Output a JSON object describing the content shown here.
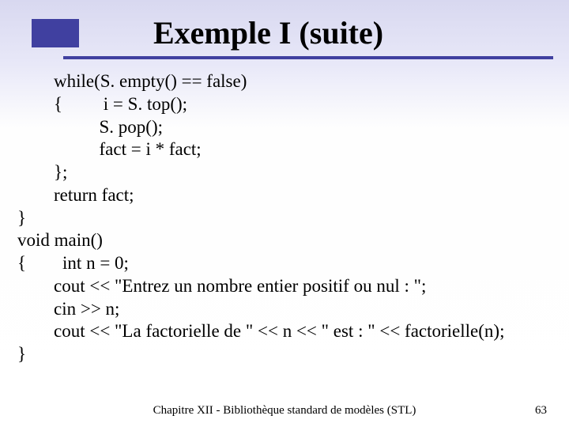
{
  "slide": {
    "title": "Exemple I (suite)",
    "accent_color": "#4040a0",
    "background_gradient_top": "#d8d8f0",
    "background_gradient_bottom": "#ffffff",
    "code_lines": [
      "        while(S. empty() == false)",
      "        {         i = S. top();",
      "                  S. pop();",
      "                  fact = i * fact;",
      "        };",
      "        return fact;",
      "}",
      "void main()",
      "{        int n = 0;",
      "        cout << \"Entrez un nombre entier positif ou nul : \";",
      "        cin >> n;",
      "        cout << \"La factorielle de \" << n << \" est : \" << factorielle(n);",
      "}"
    ],
    "footer": "Chapitre XII - Bibliothèque standard de modèles (STL)",
    "page_number": "63",
    "title_fontsize": 40,
    "code_fontsize": 23,
    "footer_fontsize": 15
  }
}
